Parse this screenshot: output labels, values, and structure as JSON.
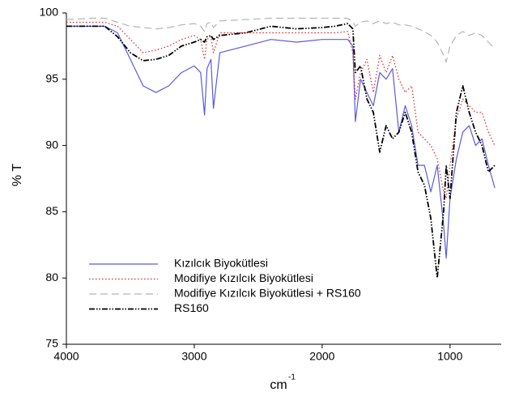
{
  "chart_data": {
    "type": "line",
    "y_label": "% T",
    "x_label": "cm",
    "x_label_superscript": "-1",
    "xlim": [
      4000,
      600
    ],
    "xticks": [
      4000,
      3000,
      2000,
      1000
    ],
    "ylim": [
      75,
      100
    ],
    "yticks": [
      75,
      80,
      85,
      90,
      95,
      100
    ],
    "grid": false,
    "legend_position": "lower left",
    "x": [
      4000,
      3800,
      3700,
      3600,
      3500,
      3400,
      3300,
      3200,
      3100,
      3000,
      2950,
      2920,
      2900,
      2870,
      2850,
      2800,
      2600,
      2400,
      2200,
      2000,
      1900,
      1800,
      1760,
      1740,
      1700,
      1650,
      1600,
      1550,
      1500,
      1450,
      1400,
      1350,
      1300,
      1250,
      1200,
      1150,
      1100,
      1050,
      1030,
      1000,
      950,
      900,
      850,
      800,
      750,
      700,
      650
    ],
    "series": [
      {
        "name": "Kızılcık Biyokütlesi",
        "color": "#5a5ae0",
        "line_style": "solid",
        "values": [
          99,
          99,
          99,
          98.5,
          96.5,
          94.5,
          94,
          94.5,
          95.5,
          96,
          95.5,
          92.3,
          95.8,
          96.5,
          92.8,
          97,
          97.5,
          98,
          97.8,
          98,
          98,
          98,
          97.5,
          91.8,
          95,
          94,
          93,
          95.5,
          95,
          95.8,
          91,
          93,
          91.5,
          88.5,
          88.5,
          86.5,
          88.5,
          84,
          81.5,
          86,
          89,
          91,
          91.5,
          90,
          90.5,
          88.5,
          86.8
        ]
      },
      {
        "name": "Modifiye Kızılcık Biyokütlesi",
        "color": "#e02020",
        "line_style": "dotted",
        "values": [
          99.3,
          99.3,
          99.3,
          99,
          98,
          97,
          97.2,
          97.5,
          98,
          98.3,
          98,
          96.5,
          98,
          98.2,
          97,
          98.5,
          98.5,
          98.5,
          98.5,
          98.5,
          98.5,
          98.6,
          97,
          93.5,
          95.5,
          96.5,
          94,
          96.8,
          95.5,
          96.8,
          95,
          94,
          94.5,
          91,
          90.5,
          90,
          89,
          86.5,
          86,
          88.5,
          92,
          93.5,
          93,
          92.5,
          92.5,
          91,
          90
        ]
      },
      {
        "name": "Modifiye Kızılcık Biyokütlesi + RS160",
        "color": "#b4b4b4",
        "line_style": "dashed",
        "values": [
          99.5,
          99.6,
          99.6,
          99.3,
          99,
          98.9,
          98.8,
          98.9,
          99.1,
          99.2,
          99,
          98.6,
          99.2,
          99.3,
          98.9,
          99.4,
          99.5,
          99.6,
          99.6,
          99.6,
          99.6,
          99.6,
          99.3,
          99,
          99.3,
          99.4,
          99.2,
          99.4,
          99.2,
          99.3,
          99.1,
          99.1,
          99,
          98.8,
          98.6,
          98.3,
          97.8,
          96.8,
          96.3,
          97.5,
          98.3,
          98.6,
          98.3,
          98.5,
          98.3,
          97.8,
          97.3
        ]
      },
      {
        "name": "RS160",
        "color": "#000000",
        "line_style": "dashdot",
        "values": [
          99,
          99,
          99,
          98.2,
          97,
          96.4,
          96.5,
          96.8,
          97.5,
          97.8,
          98,
          97.8,
          98.2,
          98.3,
          98,
          98.3,
          98.5,
          99,
          98.8,
          98.9,
          99,
          99.2,
          98.8,
          95.5,
          96,
          93.5,
          92.5,
          89.5,
          91.5,
          90.5,
          91,
          92.5,
          91,
          88,
          87,
          84.5,
          80,
          85,
          88.5,
          86,
          92.5,
          94.5,
          92.5,
          91,
          90,
          88,
          88.5
        ]
      }
    ]
  }
}
